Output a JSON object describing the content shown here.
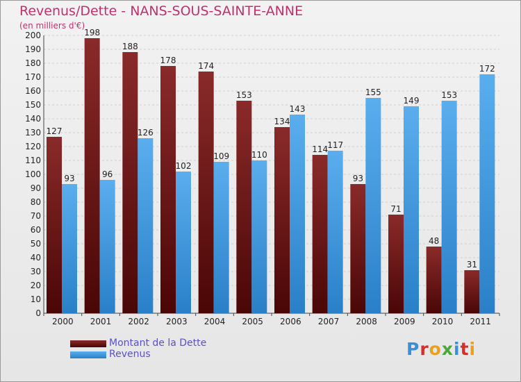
{
  "colors": {
    "title": "#c0306e",
    "dette": "#7a1a1a",
    "revenus": "#3a96e0"
  },
  "logo": "Proxiti",
  "chart_data": {
    "type": "bar",
    "title": "Revenus/Dette - NANS-SOUS-SAINTE-ANNE",
    "subtitle": "(en milliers d'€)",
    "xlabel": "",
    "ylabel": "",
    "ylim": [
      0,
      200
    ],
    "yticks": [
      0,
      10,
      20,
      30,
      40,
      50,
      60,
      70,
      80,
      90,
      100,
      110,
      120,
      130,
      140,
      150,
      160,
      170,
      180,
      190,
      200
    ],
    "grid": true,
    "legend_position": "bottom-left",
    "categories": [
      "2000",
      "2001",
      "2002",
      "2003",
      "2004",
      "2005",
      "2006",
      "2007",
      "2008",
      "2009",
      "2010",
      "2011"
    ],
    "series": [
      {
        "name": "Montant de la Dette",
        "values": [
          127,
          198,
          188,
          178,
          174,
          153,
          134,
          114,
          93,
          71,
          48,
          31
        ]
      },
      {
        "name": "Revenus",
        "values": [
          93,
          96,
          126,
          102,
          109,
          110,
          143,
          117,
          155,
          149,
          153,
          172
        ]
      }
    ]
  }
}
